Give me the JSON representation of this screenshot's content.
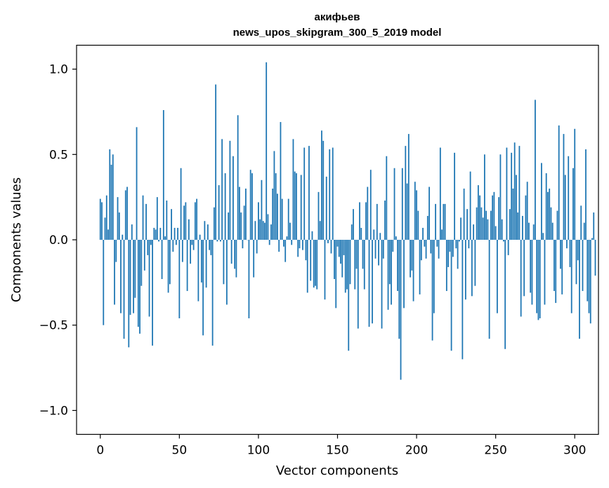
{
  "chart_data": {
    "type": "bar",
    "title_line1": "акифьев",
    "title_line2": "news_upos_skipgram_300_5_2019 model",
    "xlabel": "Vector components",
    "ylabel": "Components values",
    "xlim": [
      -15,
      315
    ],
    "ylim": [
      -1.14,
      1.14
    ],
    "xticks": [
      0,
      50,
      100,
      150,
      200,
      250,
      300
    ],
    "xtick_labels": [
      "0",
      "50",
      "100",
      "150",
      "200",
      "250",
      "300"
    ],
    "yticks": [
      1.0,
      0.5,
      0.0,
      -0.5,
      -1.0
    ],
    "ytick_labels": [
      "1.0",
      "0.5",
      "0.0",
      "−0.5",
      "−1.0"
    ],
    "bar_color": "#1f77b4",
    "values": [
      0.24,
      0.22,
      -0.5,
      0.13,
      0.26,
      0.06,
      0.53,
      0.44,
      0.5,
      -0.38,
      -0.13,
      0.25,
      0.16,
      -0.43,
      0.03,
      -0.58,
      0.29,
      0.31,
      -0.63,
      -0.44,
      0.09,
      -0.43,
      -0.34,
      0.66,
      -0.51,
      -0.55,
      -0.27,
      0.26,
      -0.18,
      0.21,
      -0.09,
      -0.45,
      -0.03,
      -0.62,
      0.07,
      0.06,
      0.25,
      -0.01,
      0.07,
      -0.23,
      0.76,
      0.02,
      0.23,
      -0.31,
      -0.26,
      0.18,
      -0.07,
      0.07,
      -0.03,
      0.07,
      -0.46,
      0.42,
      -0.13,
      0.2,
      0.22,
      -0.3,
      0.12,
      -0.14,
      -0.03,
      -0.06,
      0.22,
      0.24,
      -0.36,
      0.03,
      -0.25,
      -0.56,
      0.11,
      -0.28,
      0.09,
      -0.06,
      -0.09,
      -0.62,
      0.19,
      0.91,
      -0.01,
      0.32,
      -0.01,
      0.59,
      -0.26,
      0.39,
      -0.38,
      0.16,
      0.58,
      -0.14,
      0.49,
      -0.17,
      -0.22,
      0.73,
      0.31,
      0.16,
      -0.05,
      0.2,
      0.3,
      0.0,
      -0.46,
      0.41,
      0.39,
      -0.22,
      0.11,
      -0.08,
      0.22,
      0.12,
      0.35,
      0.11,
      0.1,
      1.04,
      0.15,
      -0.03,
      0.09,
      0.3,
      0.52,
      0.39,
      0.27,
      -0.07,
      0.69,
      0.24,
      -0.04,
      -0.13,
      0.02,
      0.24,
      0.1,
      -0.03,
      0.59,
      0.4,
      0.39,
      -0.1,
      -0.05,
      0.38,
      -0.06,
      0.54,
      -0.12,
      -0.31,
      0.55,
      -0.24,
      0.05,
      -0.28,
      -0.27,
      -0.29,
      0.28,
      0.11,
      0.64,
      0.58,
      -0.35,
      0.37,
      -0.02,
      0.53,
      -0.08,
      0.54,
      -0.23,
      -0.4,
      -0.04,
      -0.1,
      -0.14,
      -0.22,
      -0.09,
      -0.31,
      -0.29,
      -0.65,
      -0.26,
      0.09,
      0.18,
      -0.29,
      -0.17,
      -0.52,
      0.22,
      0.07,
      -0.17,
      -0.29,
      0.22,
      0.31,
      -0.51,
      0.41,
      -0.49,
      0.06,
      -0.11,
      0.21,
      -0.15,
      0.04,
      -0.52,
      -0.11,
      0.23,
      0.49,
      -0.41,
      -0.26,
      -0.38,
      -0.07,
      0.42,
      0.02,
      -0.3,
      -0.58,
      -0.82,
      0.42,
      -0.4,
      0.55,
      0.33,
      0.62,
      -0.22,
      -0.18,
      -0.36,
      0.34,
      0.29,
      0.17,
      -0.32,
      -0.12,
      0.07,
      -0.04,
      -0.11,
      0.14,
      0.31,
      -0.08,
      -0.59,
      -0.43,
      0.21,
      -0.04,
      -0.11,
      0.54,
      0.06,
      0.21,
      0.21,
      -0.3,
      -0.16,
      -0.07,
      -0.65,
      -0.1,
      0.51,
      -0.05,
      -0.17,
      -0.01,
      0.13,
      -0.7,
      0.3,
      -0.35,
      0.18,
      -0.05,
      0.4,
      -0.33,
      0.09,
      -0.27,
      0.19,
      0.32,
      0.26,
      0.19,
      0.13,
      0.5,
      0.17,
      0.12,
      -0.58,
      0.17,
      0.26,
      0.28,
      0.08,
      -0.43,
      0.25,
      0.5,
      0.12,
      -0.01,
      -0.64,
      0.54,
      -0.09,
      0.18,
      0.51,
      0.3,
      0.57,
      0.38,
      0.16,
      0.55,
      -0.45,
      0.14,
      -0.33,
      0.26,
      0.34,
      0.1,
      -0.31,
      -0.38,
      0.09,
      0.82,
      -0.43,
      -0.47,
      -0.46,
      0.45,
      0.04,
      -0.38,
      0.39,
      0.28,
      0.3,
      0.19,
      0.1,
      -0.3,
      -0.37,
      0.17,
      0.67,
      -0.17,
      -0.32,
      0.62,
      0.38,
      -0.05,
      0.49,
      -0.16,
      -0.43,
      0.42,
      0.65,
      -0.26,
      -0.12,
      -0.58,
      0.2,
      -0.3,
      0.1,
      0.53,
      -0.36,
      -0.43,
      -0.49,
      0.01,
      0.16,
      -0.21
    ]
  }
}
